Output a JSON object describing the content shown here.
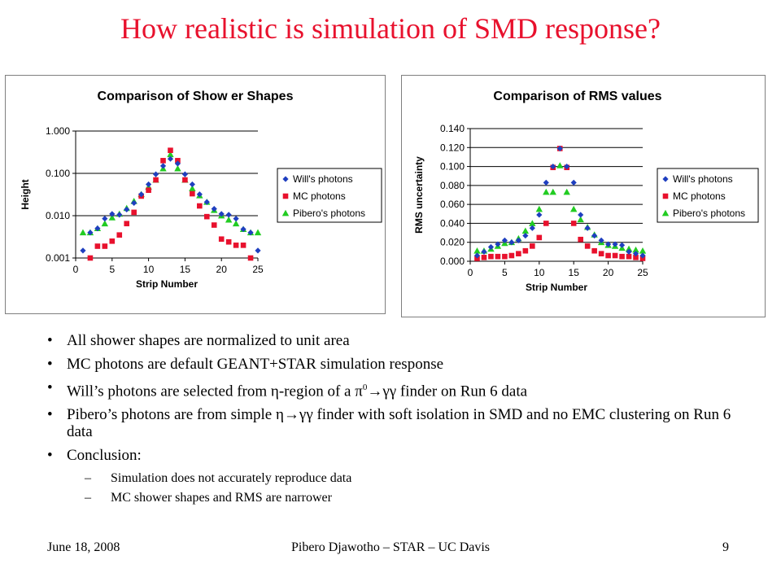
{
  "title": "How realistic is simulation of SMD response?",
  "chart_data": [
    {
      "type": "scatter",
      "title": "Comparison of Show er Shapes",
      "xlabel": "Strip  Number",
      "ylabel": "Height",
      "y_scale": "log",
      "xlim": [
        0,
        25
      ],
      "ylim": [
        0.001,
        1
      ],
      "x_ticks": [
        "0",
        "5",
        "10",
        "15",
        "20",
        "25"
      ],
      "y_ticks": [
        "0.001",
        "0.010",
        "0.100",
        "1.000"
      ],
      "grid": "horizontal",
      "legend": "right",
      "x": [
        1,
        2,
        3,
        4,
        5,
        6,
        7,
        8,
        9,
        10,
        11,
        12,
        13,
        14,
        15,
        16,
        17,
        18,
        19,
        20,
        21,
        22,
        23,
        24,
        25
      ],
      "series": [
        {
          "name": "Will's photons",
          "marker": "diamond",
          "color": "#1f3fbf",
          "values": [
            0.0015,
            0.004,
            0.005,
            0.0085,
            0.011,
            0.0105,
            0.014,
            0.02,
            0.032,
            0.055,
            0.095,
            0.15,
            0.22,
            0.17,
            0.095,
            0.055,
            0.032,
            0.021,
            0.0145,
            0.011,
            0.0105,
            0.0085,
            0.0048,
            0.004,
            0.0015
          ]
        },
        {
          "name": "MC photons",
          "marker": "square",
          "color": "#e8112d",
          "values": [
            null,
            0.001,
            0.0019,
            0.0019,
            0.0025,
            0.0035,
            0.0065,
            0.012,
            0.029,
            0.04,
            0.07,
            0.2,
            0.35,
            0.2,
            0.07,
            0.033,
            0.017,
            0.0095,
            0.006,
            0.0028,
            0.0024,
            0.002,
            0.002,
            0.001,
            null
          ]
        },
        {
          "name": "Pibero's photons",
          "marker": "triangle",
          "color": "#22cc22",
          "values": [
            0.004,
            0.004,
            0.005,
            0.0065,
            0.009,
            0.011,
            0.015,
            0.022,
            0.032,
            0.048,
            0.07,
            0.13,
            0.28,
            0.13,
            0.07,
            0.044,
            0.03,
            0.021,
            0.0135,
            0.01,
            0.008,
            0.0065,
            0.0048,
            0.004,
            0.004
          ]
        }
      ]
    },
    {
      "type": "scatter",
      "title": "Comparison of RMS values",
      "xlabel": "Strip  Number",
      "ylabel": "RMS uncertainty",
      "xlim": [
        0,
        25
      ],
      "ylim": [
        0,
        0.14
      ],
      "x_ticks": [
        "0",
        "5",
        "10",
        "15",
        "20",
        "25"
      ],
      "y_ticks": [
        "0.000",
        "0.020",
        "0.040",
        "0.060",
        "0.080",
        "0.100",
        "0.120",
        "0.140"
      ],
      "grid": "horizontal",
      "legend": "right",
      "x": [
        1,
        2,
        3,
        4,
        5,
        6,
        7,
        8,
        9,
        10,
        11,
        12,
        13,
        14,
        15,
        16,
        17,
        18,
        19,
        20,
        21,
        22,
        23,
        24,
        25
      ],
      "series": [
        {
          "name": "Will's photons",
          "marker": "diamond",
          "color": "#1f3fbf",
          "values": [
            0.006,
            0.01,
            0.015,
            0.018,
            0.022,
            0.02,
            0.022,
            0.027,
            0.035,
            0.049,
            0.083,
            0.1,
            0.119,
            0.1,
            0.083,
            0.049,
            0.035,
            0.027,
            0.022,
            0.018,
            0.018,
            0.017,
            0.01,
            0.008,
            0.006
          ]
        },
        {
          "name": "MC photons",
          "marker": "square",
          "color": "#e8112d",
          "values": [
            0.003,
            0.004,
            0.005,
            0.005,
            0.005,
            0.006,
            0.008,
            0.011,
            0.016,
            0.025,
            0.04,
            0.099,
            0.119,
            0.099,
            0.04,
            0.023,
            0.016,
            0.011,
            0.008,
            0.006,
            0.006,
            0.005,
            0.005,
            0.004,
            0.003
          ]
        },
        {
          "name": "Pibero's photons",
          "marker": "triangle",
          "color": "#22cc22",
          "values": [
            0.011,
            0.011,
            0.013,
            0.016,
            0.019,
            0.02,
            0.024,
            0.032,
            0.04,
            0.055,
            0.073,
            0.073,
            0.101,
            0.073,
            0.055,
            0.044,
            0.036,
            0.028,
            0.02,
            0.017,
            0.016,
            0.014,
            0.013,
            0.012,
            0.011
          ]
        }
      ]
    }
  ],
  "bullets": {
    "b1": "All shower shapes are normalized to unit area",
    "b2": "MC photons are default GEANT+STAR simulation response",
    "b3_pre": "Will’s photons are selected from η-region of a π",
    "b3_sup": "0",
    "b3_post": "→γγ finder on Run 6 data",
    "b4": "Pibero’s photons are from simple η→γγ finder with soft isolation in SMD and no EMC clustering on Run 6 data",
    "b5": "Conclusion:",
    "dash": "–",
    "s1": "Simulation does not accurately reproduce data",
    "s2": "MC shower shapes and RMS are narrower"
  },
  "footer": {
    "date": "June 18, 2008",
    "author": "Pibero Djawotho – STAR – UC Davis",
    "page": "9"
  }
}
